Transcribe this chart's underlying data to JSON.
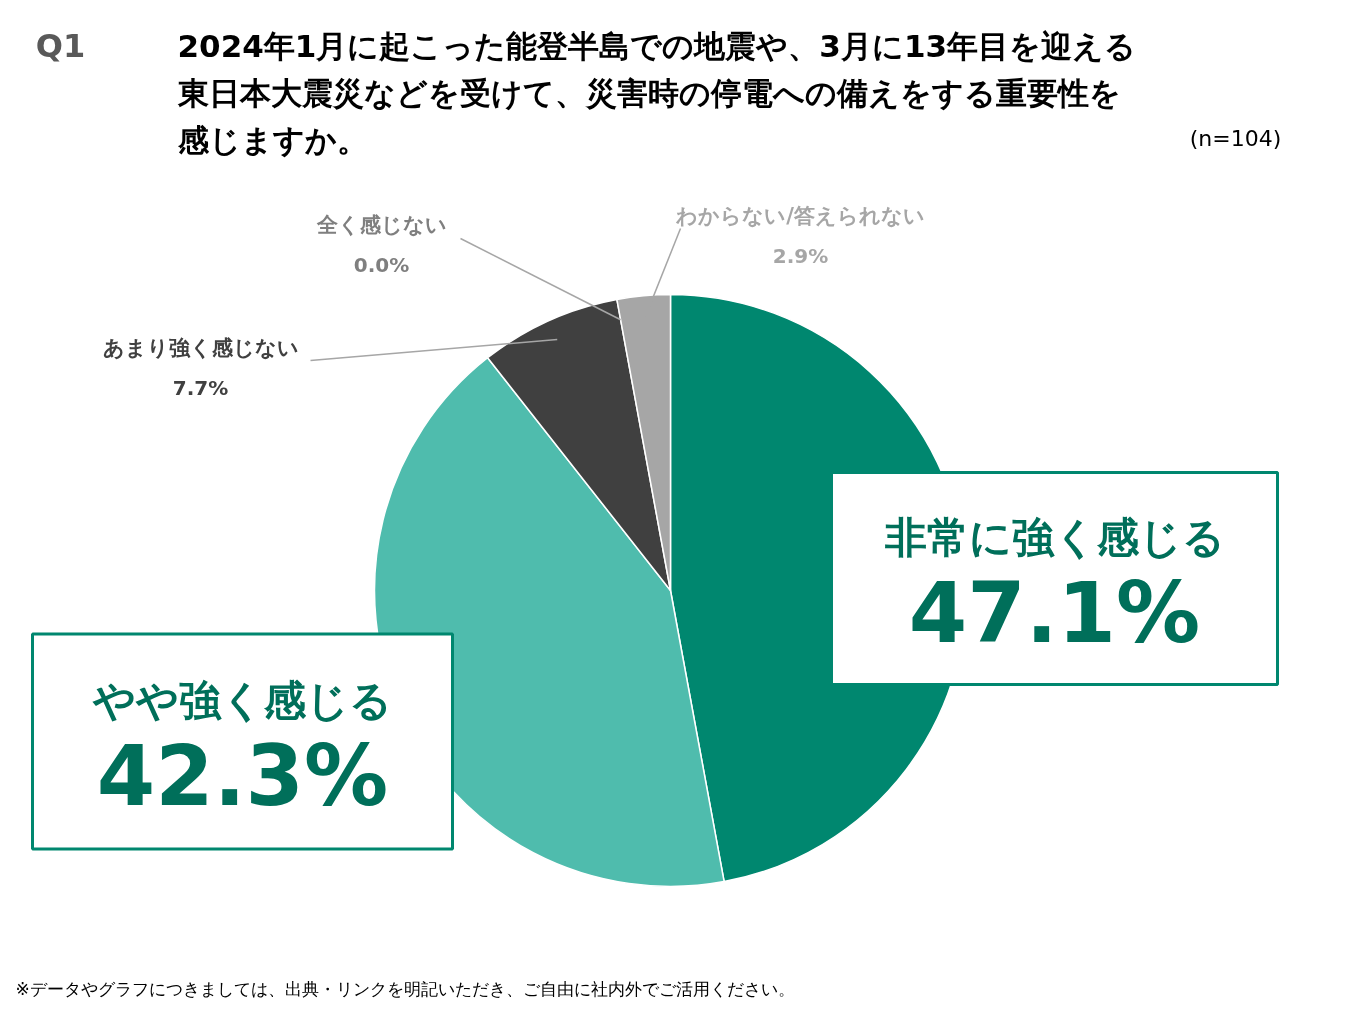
{
  "chart_data": {
    "type": "pie",
    "title": "2024年1月に起こった能登半島での地震や、3月に13年目を迎える東日本大震災などを受けて、災害時の停電への備えをする重要性を感じますか。",
    "categories": [
      "非常に強く感じる",
      "やや強く感じる",
      "あまり強く感じない",
      "全く感じない",
      "わからない/答えられない"
    ],
    "values": [
      47.1,
      42.3,
      7.7,
      0.0,
      2.9
    ],
    "colors": [
      "#00876f",
      "#4fbcad",
      "#404040",
      "#7f7f7f",
      "#a6a6a6"
    ],
    "value_labels": [
      "47.1%",
      "42.3%",
      "7.7%",
      "0.0%",
      "2.9%"
    ],
    "annotations": [
      "Q1",
      "(n=104)",
      "※データやグラフにつきましては、出典・リンクを明記いただき、ご自由に社内外でご活用ください。"
    ]
  }
}
